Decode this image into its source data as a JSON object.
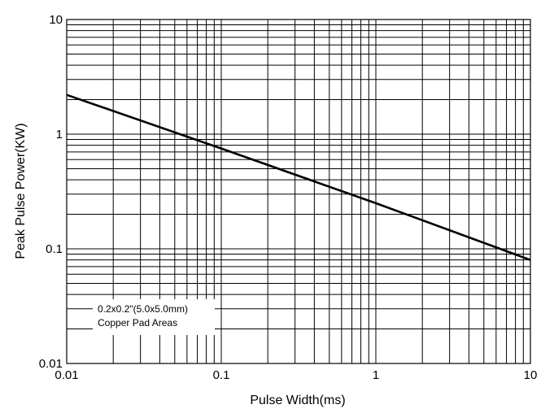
{
  "chart_data": {
    "type": "line",
    "title": "",
    "xlabel": "Pulse Width(ms)",
    "ylabel": "Peak Pulse Power(KW)",
    "x_scale": "log",
    "y_scale": "log",
    "xlim": [
      0.01,
      10
    ],
    "ylim": [
      0.01,
      10
    ],
    "grid": true,
    "x_ticks": [
      "0.01",
      "0.1",
      "1",
      "10"
    ],
    "y_ticks": [
      "0.01",
      "0.1",
      "1",
      "10"
    ],
    "series": [
      {
        "x": [
          0.01,
          0.1,
          1,
          10
        ],
        "y": [
          2.2,
          0.75,
          0.25,
          0.08
        ]
      }
    ],
    "annotations": [
      "0.2x0.2\"(5.0x5.0mm)",
      "Copper Pad Areas"
    ],
    "colors": {
      "line": "#000000",
      "grid": "#000000",
      "background": "#ffffff"
    }
  }
}
